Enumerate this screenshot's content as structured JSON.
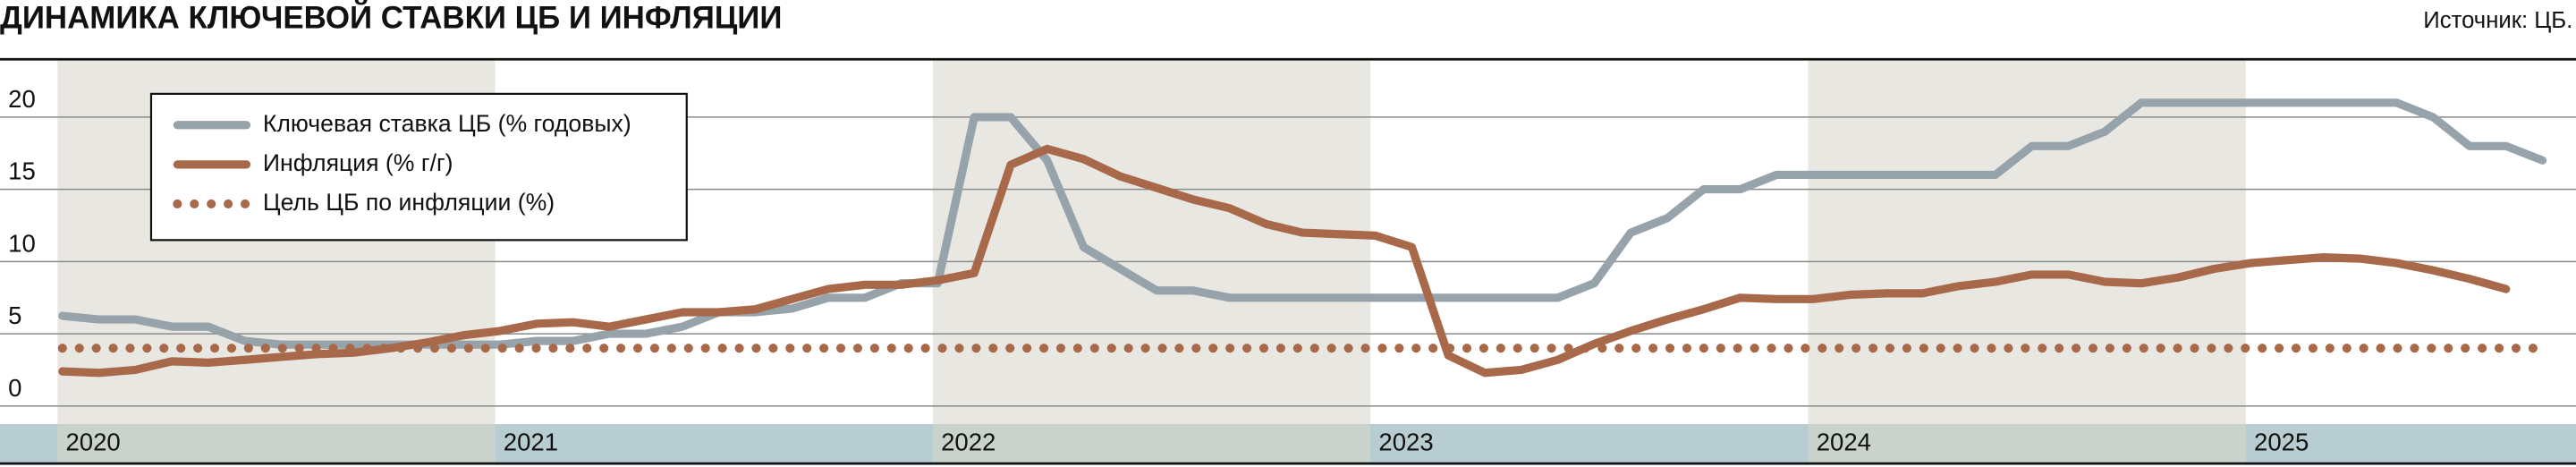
{
  "chart_data": {
    "type": "line",
    "title": "ДИНАМИКА КЛЮЧЕВОЙ СТАВКИ ЦБ И ИНФЛЯЦИИ",
    "source": "Источник: ЦБ.",
    "categories": [
      "2020",
      null,
      null,
      null,
      null,
      null,
      null,
      null,
      null,
      null,
      null,
      null,
      "2021",
      null,
      null,
      null,
      null,
      null,
      null,
      null,
      null,
      null,
      null,
      null,
      "2022",
      null,
      null,
      null,
      null,
      null,
      null,
      null,
      null,
      null,
      null,
      null,
      "2023",
      null,
      null,
      null,
      null,
      null,
      null,
      null,
      null,
      null,
      null,
      null,
      "2024",
      null,
      null,
      null,
      null,
      null,
      null,
      null,
      null,
      null,
      null,
      null,
      "2025",
      null,
      null,
      null,
      null,
      null,
      null,
      null,
      null
    ],
    "series": [
      {
        "name": "Ключевая ставка ЦБ (% годовых)",
        "color": "#96a3aa",
        "values": [
          6.25,
          6,
          6,
          5.5,
          5.5,
          4.5,
          4.25,
          4.25,
          4.25,
          4.25,
          4.25,
          4.25,
          4.25,
          4.5,
          4.5,
          5,
          5,
          5.5,
          6.5,
          6.5,
          6.75,
          7.5,
          7.5,
          8.5,
          8.5,
          20,
          20,
          17,
          11,
          9.5,
          8,
          8,
          7.5,
          7.5,
          7.5,
          7.5,
          7.5,
          7.5,
          7.5,
          7.5,
          7.5,
          7.5,
          8.5,
          12,
          13,
          15,
          15,
          16,
          16,
          16,
          16,
          16,
          16,
          16,
          18,
          18,
          19,
          21,
          21,
          21,
          21,
          21,
          21,
          21,
          21,
          20,
          18,
          18,
          17
        ]
      },
      {
        "name": "Инфляция (% г/г)",
        "color": "#a8694a",
        "values": [
          2.4,
          2.3,
          2.5,
          3.1,
          3.0,
          3.2,
          3.4,
          3.6,
          3.7,
          4.0,
          4.4,
          4.9,
          5.2,
          5.7,
          5.8,
          5.5,
          6.0,
          6.5,
          6.5,
          6.7,
          7.4,
          8.1,
          8.4,
          8.4,
          8.7,
          9.2,
          16.7,
          17.8,
          17.1,
          15.9,
          15.1,
          14.3,
          13.7,
          12.6,
          12.0,
          11.9,
          11.8,
          11.0,
          3.5,
          2.3,
          2.5,
          3.2,
          4.3,
          5.2,
          6.0,
          6.7,
          7.5,
          7.4,
          7.4,
          7.7,
          7.8,
          7.8,
          8.3,
          8.6,
          9.1,
          9.1,
          8.6,
          8.5,
          8.9,
          9.5,
          9.9,
          10.1,
          10.3,
          10.2,
          9.9,
          9.4,
          8.8,
          8.1,
          null
        ]
      },
      {
        "name": "Цель ЦБ по инфляции (%)",
        "color": "#a8694a",
        "style": "dotted",
        "values": [
          4,
          4,
          4,
          4,
          4,
          4,
          4,
          4,
          4,
          4,
          4,
          4,
          4,
          4,
          4,
          4,
          4,
          4,
          4,
          4,
          4,
          4,
          4,
          4,
          4,
          4,
          4,
          4,
          4,
          4,
          4,
          4,
          4,
          4,
          4,
          4,
          4,
          4,
          4,
          4,
          4,
          4,
          4,
          4,
          4,
          4,
          4,
          4,
          4,
          4,
          4,
          4,
          4,
          4,
          4,
          4,
          4,
          4,
          4,
          4,
          4,
          4,
          4,
          4,
          4,
          4,
          4,
          4,
          4
        ]
      }
    ],
    "ylim": [
      -1.25,
      24
    ],
    "yticks": [
      0,
      5,
      10,
      15,
      20
    ],
    "grid": true,
    "legend": "upper left"
  }
}
